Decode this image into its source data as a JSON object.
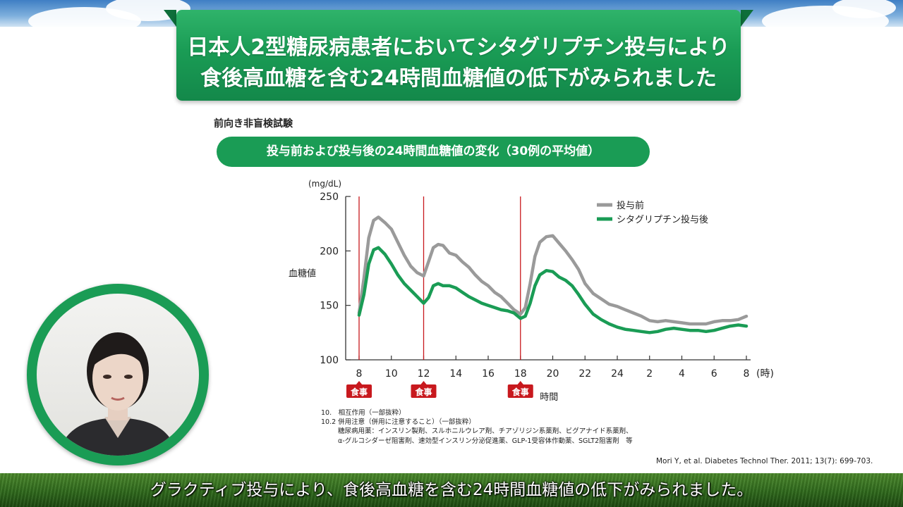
{
  "title": {
    "line1": "日本人2型糖尿病患者においてシタグリプチン投与により",
    "line2": "食後高血糖を含む24時間血糖値の低下がみられました"
  },
  "study_type": "前向き非盲検試験",
  "chart_title": "投与前および投与後の24時間血糖値の変化（30例の平均値）",
  "chart_data": {
    "type": "line",
    "title": "投与前および投与後の24時間血糖値の変化（30例の平均値）",
    "xlabel": "時間",
    "x_unit": "(時)",
    "ylabel": "血糖値",
    "y_unit": "(mg/dL)",
    "ylim": [
      100,
      250
    ],
    "yticks": [
      100,
      150,
      200,
      250
    ],
    "xticks": [
      "8",
      "10",
      "12",
      "14",
      "16",
      "18",
      "20",
      "22",
      "24",
      "2",
      "4",
      "6",
      "8"
    ],
    "x_range_hours": [
      8,
      32
    ],
    "grid": false,
    "legend_position": "top-right",
    "meal_marker_label": "食事",
    "meals_at": [
      8,
      12,
      18
    ],
    "series": [
      {
        "name": "投与前",
        "color": "#9a9a9a",
        "x": [
          8,
          8.3,
          8.6,
          8.9,
          9.2,
          9.6,
          10,
          10.4,
          10.8,
          11.2,
          11.6,
          12,
          12.3,
          12.6,
          12.9,
          13.2,
          13.6,
          14,
          14.4,
          14.8,
          15.2,
          15.6,
          16,
          16.4,
          16.8,
          17.2,
          17.6,
          18,
          18.3,
          18.6,
          18.9,
          19.2,
          19.6,
          20,
          20.4,
          20.8,
          21.2,
          21.6,
          22,
          22.5,
          23,
          23.5,
          24,
          24.5,
          25,
          25.5,
          26,
          26.5,
          27,
          27.5,
          28,
          28.5,
          29,
          29.5,
          30,
          30.5,
          31,
          31.5,
          32
        ],
        "values": [
          143,
          175,
          212,
          228,
          231,
          226,
          220,
          208,
          196,
          186,
          180,
          177,
          190,
          203,
          206,
          205,
          198,
          196,
          190,
          185,
          178,
          172,
          168,
          162,
          158,
          152,
          146,
          142,
          148,
          170,
          195,
          208,
          213,
          214,
          207,
          200,
          192,
          183,
          170,
          161,
          156,
          151,
          149,
          146,
          143,
          140,
          136,
          135,
          136,
          135,
          134,
          133,
          133,
          133,
          135,
          136,
          136,
          137,
          140
        ]
      },
      {
        "name": "シタグリプチン投与後",
        "color": "#1a9c55",
        "x": [
          8,
          8.3,
          8.6,
          8.9,
          9.2,
          9.6,
          10,
          10.4,
          10.8,
          11.2,
          11.6,
          12,
          12.3,
          12.6,
          12.9,
          13.2,
          13.6,
          14,
          14.4,
          14.8,
          15.2,
          15.6,
          16,
          16.4,
          16.8,
          17.2,
          17.6,
          18,
          18.3,
          18.6,
          18.9,
          19.2,
          19.6,
          20,
          20.4,
          20.8,
          21.2,
          21.6,
          22,
          22.5,
          23,
          23.5,
          24,
          24.5,
          25,
          25.5,
          26,
          26.5,
          27,
          27.5,
          28,
          28.5,
          29,
          29.5,
          30,
          30.5,
          31,
          31.5,
          32
        ],
        "values": [
          141,
          160,
          188,
          201,
          203,
          197,
          188,
          178,
          170,
          164,
          158,
          152,
          157,
          168,
          170,
          168,
          168,
          166,
          162,
          158,
          155,
          152,
          150,
          148,
          146,
          145,
          143,
          138,
          140,
          152,
          168,
          178,
          182,
          181,
          176,
          173,
          168,
          160,
          151,
          142,
          137,
          133,
          130,
          128,
          127,
          126,
          125,
          126,
          128,
          129,
          128,
          127,
          127,
          126,
          127,
          129,
          131,
          132,
          131
        ]
      }
    ]
  },
  "footnotes": {
    "line1": "10.　相互作用（一部抜粋）",
    "line2": "10.2 併用注意（併用に注意すること）（一部抜粋）",
    "line3": "糖尿病用薬：インスリン製剤、スルホニルウレア剤、チアゾリジン系薬剤、ビグアナイド系薬剤、",
    "line4": "α-グルコシダーゼ阻害剤、速効型インスリン分泌促進薬、GLP-1受容体作動薬、SGLT2阻害剤　等"
  },
  "citation": "Mori Y, et al. Diabetes Technol Ther. 2011; 13(7): 699-703.",
  "caption": "グラクティブ投与により、食後高血糖を含む24時間血糖値の低下がみられました。",
  "colors": {
    "brand_green": "#1a9c55",
    "meal_line": "#c8191e",
    "pre_series": "#9a9a9a"
  }
}
